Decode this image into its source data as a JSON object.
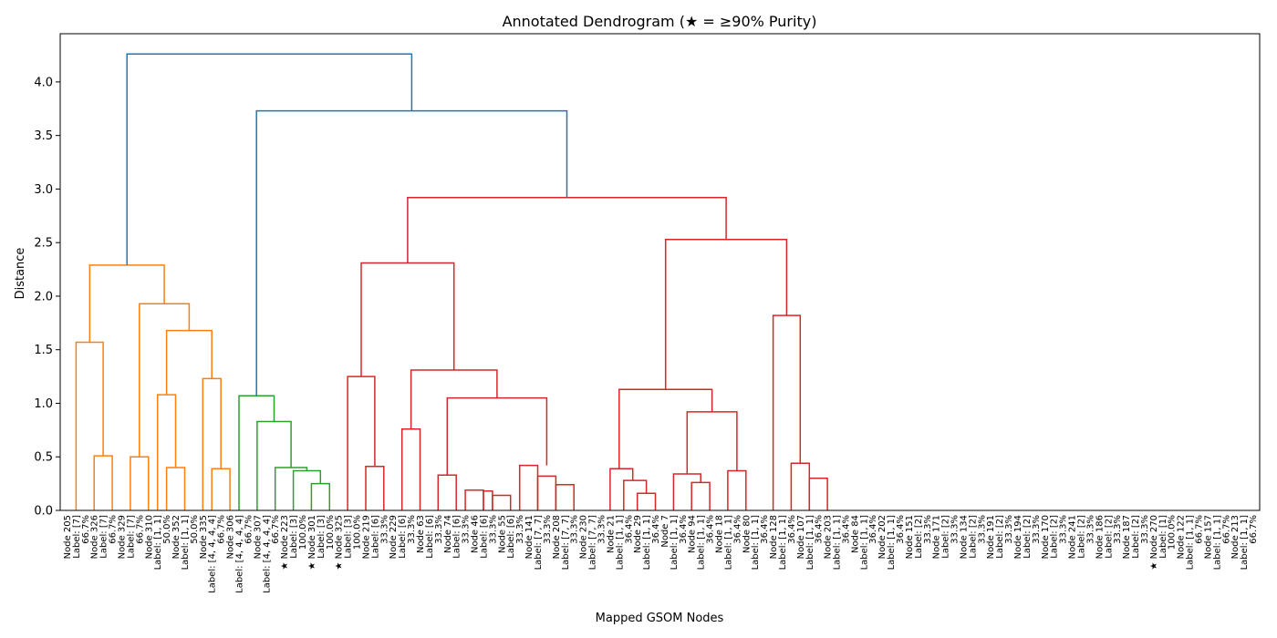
{
  "chart_data": {
    "type": "dendrogram",
    "title": "Annotated Dendrogram (★ = ≥90% Purity)",
    "xlabel": "Mapped GSOM Nodes",
    "ylabel": "Distance",
    "ylim": [
      0,
      4.45
    ],
    "yticks": [
      "0.0",
      "0.5",
      "1.0",
      "1.5",
      "2.0",
      "2.5",
      "3.0",
      "3.5",
      "4.0"
    ],
    "grid": false,
    "colors": {
      "orange": "#ff7f0e",
      "green": "#2ca02c",
      "red": "#d62728",
      "blue": "#1f77b4"
    },
    "leaves": [
      "Node 205",
      "Label: [7]",
      "66.7%",
      "Node 326",
      "Label: [7]",
      "66.7%",
      "Node 329",
      "Label: [7]",
      "66.7%",
      "Node 310",
      "Label: [1, 1]",
      "50.0%",
      "Node 352",
      "Label: [1, 1]",
      "50.0%",
      "Node 335",
      "Label: [4, 4, 4, 4]",
      "66.7%",
      "Node 306",
      "Label: [4, 4, 4, 4]",
      "66.7%",
      "Node 307",
      "Label: [4, 4, 4, 4]",
      "66.7%",
      "★ Node 223",
      "Label: [3]",
      "100.0%",
      "★ Node 301",
      "Label: [3]",
      "100.0%",
      "★ Node 325",
      "Label: [3]",
      "100.0%",
      "Node 219",
      "Label: [6]",
      "33.3%",
      "Node 229",
      "Label: [6]",
      "33.3%",
      "Node 63",
      "Label: [6]",
      "33.3%",
      "Node 74",
      "Label: [6]",
      "33.3%",
      "Node 46",
      "Label: [6]",
      "33.3%",
      "Node 55",
      "Label: [6]",
      "33.3%",
      "Node 141",
      "Label: [7, 7]",
      "33.3%",
      "Node 208",
      "Label: [7, 7]",
      "33.3%",
      "Node 230",
      "Label: [7, 7]",
      "33.3%",
      "Node 21",
      "Label: [1, 1]",
      "36.4%",
      "Node 29",
      "Label: [1, 1]",
      "36.4%",
      "Node 7",
      "Label: [1, 1]",
      "36.4%",
      "Node 94",
      "Label: [1, 1]",
      "36.4%",
      "Node 18",
      "Label: [1, 1]",
      "36.4%",
      "Node 80",
      "Label: [1, 1]",
      "36.4%",
      "Node 128",
      "Label: [1, 1]",
      "36.4%",
      "Node 107",
      "Label: [1, 1]",
      "36.4%",
      "Node 203",
      "Label: [1, 1]",
      "36.4%",
      "Node 84",
      "Label: [1, 1]",
      "36.4%",
      "Node 202",
      "Label: [1, 1]",
      "36.4%",
      "Node 151",
      "Label: [2]",
      "33.3%",
      "Node 171",
      "Label: [2]",
      "33.3%",
      "Node 134",
      "Label: [2]",
      "33.3%",
      "Node 191",
      "Label: [2]",
      "33.3%",
      "Node 194",
      "Label: [2]",
      "33.3%",
      "Node 170",
      "Label: [2]",
      "33.3%",
      "Node 241",
      "Label: [2]",
      "33.3%",
      "Node 186",
      "Label: [2]",
      "33.3%",
      "Node 187",
      "Label: [2]",
      "33.3%",
      "★ Node 270",
      "Label: [1]",
      "100.0%",
      "Node 122",
      "Label: [1, 1]",
      "66.7%",
      "Node 157",
      "Label: [1, 1]",
      "66.7%",
      "Node 213",
      "Label: [1, 1]",
      "66.7%"
    ],
    "links": [
      {
        "color": "orange",
        "left": 1,
        "right": 4,
        "h_left": 0,
        "h_right": 0.51,
        "h": 1.57
      },
      {
        "color": "orange",
        "left": 3,
        "right": 5,
        "h_left": 0,
        "h_right": 0,
        "h": 0.51
      },
      {
        "color": "orange",
        "left": 7,
        "right": 9,
        "h_left": 0,
        "h_right": 0,
        "h": 0.5
      },
      {
        "color": "orange",
        "left": 11,
        "right": 13,
        "h_left": 0,
        "h_right": 0,
        "h": 0.4
      },
      {
        "color": "orange",
        "left": 10,
        "right": 12,
        "h_left": 0,
        "h_right": 0.4,
        "h": 1.08
      },
      {
        "color": "orange",
        "left": 16,
        "right": 18,
        "h_left": 0,
        "h_right": 0,
        "h": 0.39
      },
      {
        "color": "orange",
        "left": 15,
        "right": 17,
        "h_left": 0,
        "h_right": 0.39,
        "h": 1.23
      },
      {
        "color": "orange",
        "left": 11,
        "right": 16,
        "h_left": 1.08,
        "h_right": 1.23,
        "h": 1.68
      },
      {
        "color": "orange",
        "left": 8,
        "right": 13.5,
        "h_left": 0.5,
        "h_right": 1.68,
        "h": 1.93
      },
      {
        "color": "orange",
        "left": 2.5,
        "right": 10.75,
        "h_left": 1.57,
        "h_right": 1.93,
        "h": 2.29
      },
      {
        "color": "green",
        "left": 27,
        "right": 29,
        "h_left": 0,
        "h_right": 0,
        "h": 0.25
      },
      {
        "color": "green",
        "left": 25,
        "right": 28,
        "h_left": 0,
        "h_right": 0.25,
        "h": 0.37
      },
      {
        "color": "green",
        "left": 23,
        "right": 26.5,
        "h_left": 0,
        "h_right": 0.37,
        "h": 0.4
      },
      {
        "color": "green",
        "left": 21,
        "right": 24.75,
        "h_left": 0,
        "h_right": 0.4,
        "h": 0.83
      },
      {
        "color": "green",
        "left": 19,
        "right": 22.875,
        "h_left": 0,
        "h_right": 0.83,
        "h": 1.07
      },
      {
        "color": "red",
        "left": 33,
        "right": 35,
        "h_left": 0,
        "h_right": 0,
        "h": 0.41
      },
      {
        "color": "red",
        "left": 31,
        "right": 34,
        "h_left": 0,
        "h_right": 0.41,
        "h": 1.25
      },
      {
        "color": "red",
        "left": 37,
        "right": 39,
        "h_left": 0,
        "h_right": 0,
        "h": 0.76
      },
      {
        "color": "red",
        "left": 41,
        "right": 43,
        "h_left": 0,
        "h_right": 0,
        "h": 0.33
      },
      {
        "color": "red",
        "left": 44,
        "right": 46,
        "h_left": 0,
        "h_right": 0,
        "h": 0.19
      },
      {
        "color": "red",
        "left": 46,
        "right": 47,
        "h_left": 0,
        "h_right": 0,
        "h": 0.18
      },
      {
        "color": "red",
        "left": 47,
        "right": 49,
        "h_left": 0,
        "h_right": 0,
        "h": 0.14
      },
      {
        "color": "red",
        "left": 50,
        "right": 52,
        "h_left": 0,
        "h_right": 0,
        "h": 0.42
      },
      {
        "color": "red",
        "left": 52,
        "right": 54,
        "h_left": 0,
        "h_right": 0,
        "h": 0.32
      },
      {
        "color": "red",
        "left": 54,
        "right": 56,
        "h_left": 0,
        "h_right": 0,
        "h": 0.24
      },
      {
        "color": "red",
        "left": 42,
        "right": 53,
        "h_left": 0.33,
        "h_right": 0.42,
        "h": 1.05
      },
      {
        "color": "red",
        "left": 38,
        "right": 47.5,
        "h_left": 0.76,
        "h_right": 1.05,
        "h": 1.31
      },
      {
        "color": "red",
        "left": 32.5,
        "right": 42.75,
        "h_left": 1.25,
        "h_right": 1.31,
        "h": 2.31
      },
      {
        "color": "red",
        "left": 60,
        "right": 62.5,
        "h_left": 0,
        "h_right": 0.28,
        "h": 0.39
      },
      {
        "color": "red",
        "left": 61.5,
        "right": 64,
        "h_left": 0,
        "h_right": 0.16,
        "h": 0.28
      },
      {
        "color": "red",
        "left": 63,
        "right": 65,
        "h_left": 0,
        "h_right": 0,
        "h": 0.16
      },
      {
        "color": "red",
        "left": 67,
        "right": 70,
        "h_left": 0,
        "h_right": 0.26,
        "h": 0.34
      },
      {
        "color": "red",
        "left": 69,
        "right": 71,
        "h_left": 0,
        "h_right": 0,
        "h": 0.26
      },
      {
        "color": "red",
        "left": 73,
        "right": 75,
        "h_left": 0,
        "h_right": 0,
        "h": 0.37
      },
      {
        "color": "red",
        "left": 68.5,
        "right": 74,
        "h_left": 0.34,
        "h_right": 0.37,
        "h": 0.92
      },
      {
        "color": "red",
        "left": 61,
        "right": 71.25,
        "h_left": 0.39,
        "h_right": 0.92,
        "h": 1.13
      },
      {
        "color": "red",
        "left": 80,
        "right": 82,
        "h_left": 0,
        "h_right": 0,
        "h": 0.44
      },
      {
        "color": "red",
        "left": 82,
        "right": 84,
        "h_left": 0,
        "h_right": 0,
        "h": 0.3
      },
      {
        "color": "red",
        "left": 78,
        "right": 81,
        "h_left": 0,
        "h_right": 0.44,
        "h": 1.82
      },
      {
        "color": "red",
        "left": 66.125,
        "right": 79.5,
        "h_left": 1.13,
        "h_right": 1.82,
        "h": 2.53
      },
      {
        "color": "red",
        "left": 37.625,
        "right": 72.8125,
        "h_left": 2.31,
        "h_right": 2.53,
        "h": 2.92
      },
      {
        "color": "blue",
        "left": 20.9375,
        "right": 55.21875,
        "h_left": 1.07,
        "h_right": 2.92,
        "h": 3.73
      },
      {
        "color": "blue",
        "left": 6.625,
        "right": 38.078125,
        "h_left": 2.29,
        "h_right": 3.73,
        "h": 4.26
      }
    ]
  }
}
